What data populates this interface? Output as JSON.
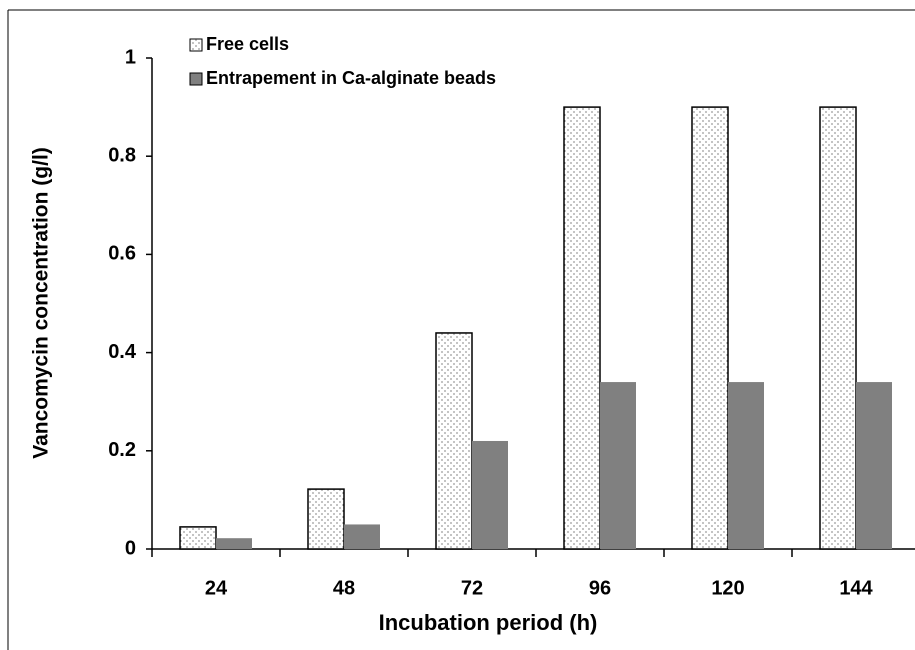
{
  "chart_data": {
    "type": "bar",
    "x_label": "Incubation period (h)",
    "y_label": "Vancomycin concentration (g/l)",
    "categories": [
      "24",
      "48",
      "72",
      "96",
      "120",
      "144"
    ],
    "series": [
      {
        "name": "Free cells",
        "color": "#ffffff",
        "pattern": "dotted",
        "values": [
          0.045,
          0.122,
          0.44,
          0.9,
          0.9,
          0.9
        ]
      },
      {
        "name": "Entrapement in Ca-alginate beads",
        "color": "#808080",
        "values": [
          0.022,
          0.05,
          0.22,
          0.34,
          0.34,
          0.34
        ]
      }
    ],
    "ylim": [
      0,
      1
    ],
    "yticks": [
      0,
      0.2,
      0.4,
      0.6,
      0.8,
      1
    ],
    "grid": false,
    "legend": "upper left"
  }
}
